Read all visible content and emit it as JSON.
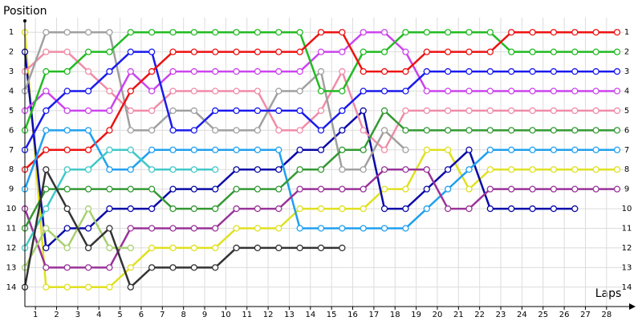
{
  "chart_data": {
    "type": "line",
    "title": "Position",
    "x_label": "Laps",
    "x": [
      0,
      1,
      2,
      3,
      4,
      5,
      6,
      7,
      8,
      9,
      10,
      11,
      12,
      13,
      14,
      15,
      16,
      17,
      18,
      19,
      20,
      21,
      22,
      23,
      24,
      25,
      26,
      27,
      28
    ],
    "xlim": [
      0,
      28
    ],
    "ylim": [
      14.5,
      0.5
    ],
    "xticks": [
      {
        "value": 0.5,
        "label": "1"
      },
      {
        "value": 1.5,
        "label": "2"
      },
      {
        "value": 2.5,
        "label": "3"
      },
      {
        "value": 3.5,
        "label": "4"
      },
      {
        "value": 4.5,
        "label": "5"
      },
      {
        "value": 5.5,
        "label": "6"
      },
      {
        "value": 6.5,
        "label": "7"
      },
      {
        "value": 7.5,
        "label": "8"
      },
      {
        "value": 8.5,
        "label": "9"
      },
      {
        "value": 9.5,
        "label": "10"
      },
      {
        "value": 10.5,
        "label": "11"
      },
      {
        "value": 11.5,
        "label": "12"
      },
      {
        "value": 12.5,
        "label": "13"
      },
      {
        "value": 13.5,
        "label": "14"
      },
      {
        "value": 14.5,
        "label": "15"
      },
      {
        "value": 15.5,
        "label": "16"
      },
      {
        "value": 16.5,
        "label": "17"
      },
      {
        "value": 17.5,
        "label": "18"
      },
      {
        "value": 18.5,
        "label": "19"
      },
      {
        "value": 19.5,
        "label": "20"
      },
      {
        "value": 20.5,
        "label": "21"
      },
      {
        "value": 21.5,
        "label": "22"
      },
      {
        "value": 22.5,
        "label": "23"
      },
      {
        "value": 23.5,
        "label": "24"
      },
      {
        "value": 24.5,
        "label": "25"
      },
      {
        "value": 25.5,
        "label": "26"
      },
      {
        "value": 26.5,
        "label": "27"
      },
      {
        "value": 27.5,
        "label": "28"
      }
    ],
    "yticks": [
      1,
      2,
      3,
      4,
      5,
      6,
      7,
      8,
      9,
      10,
      11,
      12,
      13,
      14
    ],
    "grid": true,
    "series": [
      {
        "color": "#e0e020",
        "values": [
          1,
          14,
          14,
          14,
          14,
          13,
          12,
          12,
          12,
          12,
          11,
          11,
          11,
          10,
          10,
          10,
          10,
          9,
          9,
          7,
          7,
          9,
          8,
          8,
          8,
          8,
          8,
          8,
          8
        ]
      },
      {
        "color": "#0a0aa8",
        "values": [
          2,
          12,
          11,
          11,
          10,
          10,
          10,
          9,
          9,
          9,
          8,
          8,
          8,
          7,
          7,
          6,
          5,
          10,
          10,
          9,
          8,
          7,
          10,
          10,
          10,
          10,
          10,
          null,
          null
        ]
      },
      {
        "color": "#f08ca8",
        "values": [
          3,
          2,
          2,
          3,
          4,
          5,
          5,
          4,
          4,
          4,
          4,
          4,
          6,
          6,
          5,
          3,
          6,
          7,
          5,
          5,
          5,
          5,
          5,
          5,
          5,
          5,
          5,
          5,
          5
        ]
      },
      {
        "color": "#a0a0a0",
        "values": [
          4,
          1,
          1,
          1,
          1,
          6,
          6,
          5,
          5,
          6,
          6,
          6,
          4,
          4,
          3,
          8,
          8,
          6,
          7,
          null,
          null,
          null,
          null,
          null,
          null,
          null,
          null,
          null,
          null
        ]
      },
      {
        "color": "#cc44ee",
        "values": [
          5,
          4,
          5,
          5,
          5,
          3,
          4,
          3,
          3,
          3,
          3,
          3,
          3,
          3,
          2,
          2,
          1,
          1,
          2,
          4,
          4,
          4,
          4,
          4,
          4,
          4,
          4,
          4,
          4
        ]
      },
      {
        "color": "#22bb22",
        "values": [
          6,
          3,
          3,
          2,
          2,
          1,
          1,
          1,
          1,
          1,
          1,
          1,
          1,
          1,
          4,
          4,
          2,
          2,
          1,
          1,
          1,
          1,
          1,
          2,
          2,
          2,
          2,
          2,
          2
        ]
      },
      {
        "color": "#1a1aee",
        "values": [
          7,
          5,
          4,
          4,
          3,
          2,
          2,
          6,
          6,
          5,
          5,
          5,
          5,
          5,
          6,
          5,
          4,
          4,
          4,
          3,
          3,
          3,
          3,
          3,
          3,
          3,
          3,
          3,
          3
        ]
      },
      {
        "color": "#ee1111",
        "values": [
          8,
          7,
          7,
          7,
          6,
          4,
          3,
          2,
          2,
          2,
          2,
          2,
          2,
          2,
          1,
          1,
          3,
          3,
          3,
          2,
          2,
          2,
          2,
          1,
          1,
          1,
          1,
          1,
          1
        ]
      },
      {
        "color": "#20a0f0",
        "values": [
          9,
          6,
          6,
          6,
          8,
          8,
          7,
          7,
          7,
          7,
          7,
          7,
          7,
          11,
          11,
          11,
          11,
          11,
          11,
          10,
          9,
          8,
          7,
          7,
          7,
          7,
          7,
          7,
          7
        ]
      },
      {
        "color": "#993399",
        "values": [
          10,
          13,
          13,
          13,
          13,
          11,
          11,
          11,
          11,
          11,
          10,
          10,
          10,
          9,
          9,
          9,
          9,
          8,
          8,
          8,
          10,
          10,
          9,
          9,
          9,
          9,
          9,
          9,
          9
        ]
      },
      {
        "color": "#339933",
        "values": [
          11,
          9,
          9,
          9,
          9,
          9,
          9,
          10,
          10,
          10,
          9,
          9,
          9,
          8,
          8,
          7,
          7,
          5,
          6,
          6,
          6,
          6,
          6,
          6,
          6,
          6,
          6,
          6,
          6
        ]
      },
      {
        "color": "#40c8c8",
        "values": [
          12,
          10,
          8,
          8,
          7,
          7,
          8,
          8,
          8,
          8,
          null,
          null,
          null,
          null,
          null,
          null,
          null,
          null,
          null,
          null,
          null,
          null,
          null,
          null,
          null,
          null,
          null,
          null,
          null
        ]
      },
      {
        "color": "#a8d070",
        "values": [
          13,
          11,
          12,
          10,
          12,
          12,
          null,
          null,
          null,
          null,
          null,
          null,
          null,
          null,
          null,
          null,
          null,
          null,
          null,
          null,
          null,
          null,
          null,
          null,
          null,
          null,
          null,
          null,
          null
        ]
      },
      {
        "color": "#333333",
        "values": [
          14,
          8,
          10,
          12,
          11,
          14,
          13,
          13,
          13,
          13,
          12,
          12,
          12,
          12,
          12,
          12,
          null,
          null,
          null,
          null,
          null,
          null,
          null,
          null,
          null,
          null,
          null,
          null,
          null
        ]
      }
    ]
  }
}
